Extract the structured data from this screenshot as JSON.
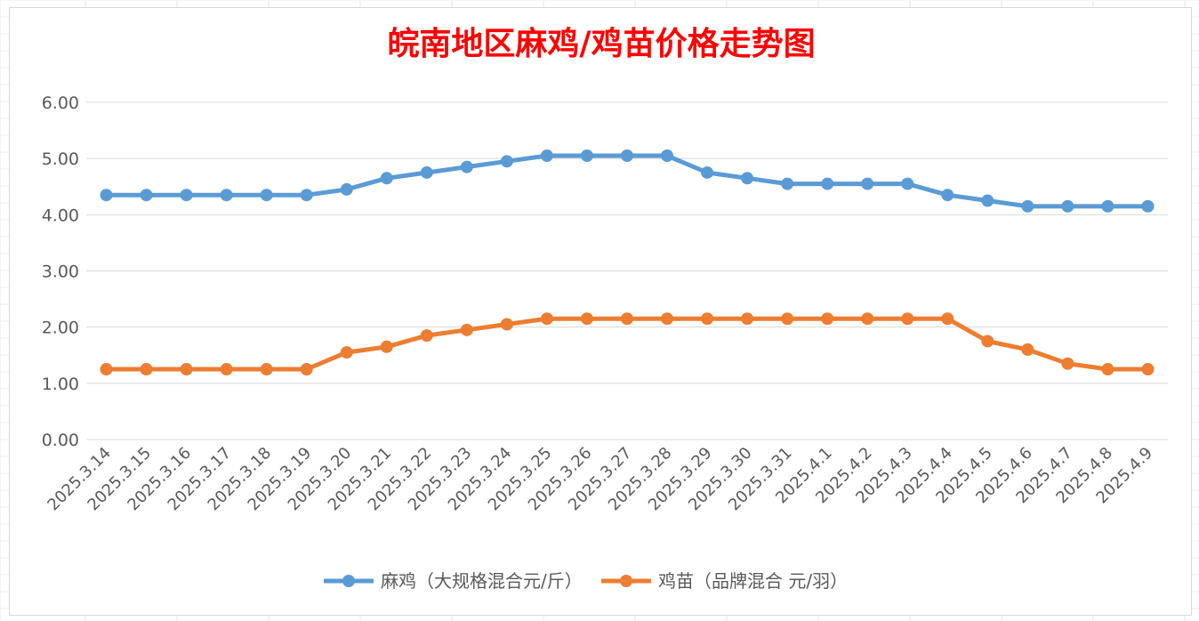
{
  "chart_data": {
    "type": "line",
    "title": "皖南地区麻鸡/鸡苗价格走势图",
    "xlabel": "",
    "ylabel": "",
    "ylim": [
      0,
      6
    ],
    "yticks": [
      "0.00",
      "1.00",
      "2.00",
      "3.00",
      "4.00",
      "5.00",
      "6.00"
    ],
    "grid": true,
    "legend_position": "bottom",
    "categories": [
      "2025.3.14",
      "2025.3.15",
      "2025.3.16",
      "2025.3.17",
      "2025.3.18",
      "2025.3.19",
      "2025.3.20",
      "2025.3.21",
      "2025.3.22",
      "2025.3.23",
      "2025.3.24",
      "2025.3.25",
      "2025.3.26",
      "2025.3.27",
      "2025.3.28",
      "2025.3.29",
      "2025.3.30",
      "2025.3.31",
      "2025.4.1",
      "2025.4.2",
      "2025.4.3",
      "2025.4.4",
      "2025.4.5",
      "2025.4.6",
      "2025.4.7",
      "2025.4.8",
      "2025.4.9"
    ],
    "series": [
      {
        "name": "麻鸡（大规格混合元/斤）",
        "color": "#5b9bd5",
        "values": [
          4.35,
          4.35,
          4.35,
          4.35,
          4.35,
          4.35,
          4.45,
          4.65,
          4.75,
          4.85,
          4.95,
          5.05,
          5.05,
          5.05,
          5.05,
          4.75,
          4.65,
          4.55,
          4.55,
          4.55,
          4.55,
          4.35,
          4.25,
          4.15,
          4.15,
          4.15,
          4.15
        ]
      },
      {
        "name": "鸡苗（品牌混合 元/羽）",
        "color": "#ed7d31",
        "values": [
          1.25,
          1.25,
          1.25,
          1.25,
          1.25,
          1.25,
          1.55,
          1.65,
          1.85,
          1.95,
          2.05,
          2.15,
          2.15,
          2.15,
          2.15,
          2.15,
          2.15,
          2.15,
          2.15,
          2.15,
          2.15,
          2.15,
          1.75,
          1.6,
          1.35,
          1.25,
          1.25
        ]
      }
    ],
    "title_color": "#ff0000",
    "gridline_color": "#d9d9d9",
    "tick_label_color": "#595959"
  }
}
